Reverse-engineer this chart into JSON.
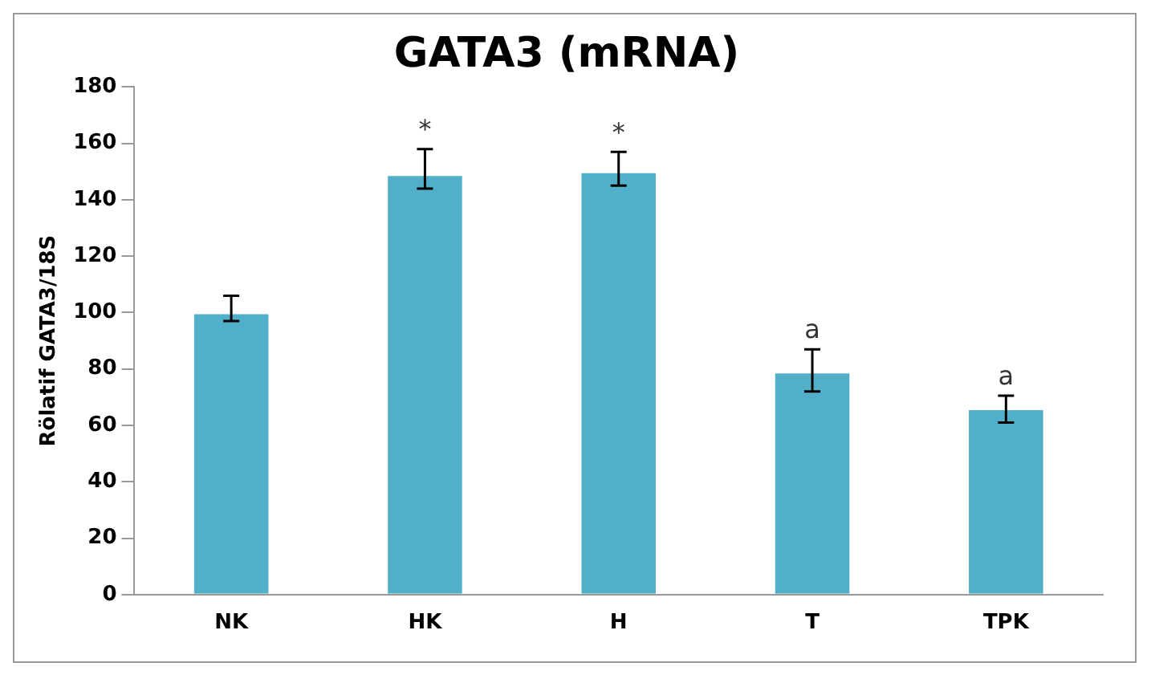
{
  "chart_data": {
    "type": "bar",
    "title": "GATA3 (mRNA)",
    "ylabel": "Rölatif GATA3/18S",
    "categories": [
      "NK",
      "HK",
      "H",
      "T",
      "TPK"
    ],
    "series": [
      {
        "color": "#52afc9",
        "values": [
          100,
          149,
          150,
          79,
          66
        ],
        "errors": [
          [
            97,
            106
          ],
          [
            144,
            158
          ],
          [
            145,
            157
          ],
          [
            72,
            87
          ],
          [
            61,
            70.5
          ]
        ]
      }
    ],
    "ylim": [
      0,
      180
    ],
    "yticks": [
      0,
      20,
      40,
      60,
      80,
      100,
      120,
      140,
      160,
      180
    ],
    "grid": false,
    "legend": false,
    "annotations": [
      {
        "text": "*",
        "x": "HK",
        "y": 158
      },
      {
        "text": "*",
        "x": "H",
        "y": 157
      },
      {
        "text": "a",
        "x": "T",
        "y": 87
      },
      {
        "text": "a",
        "x": "TPK",
        "y": 70.5
      }
    ]
  }
}
